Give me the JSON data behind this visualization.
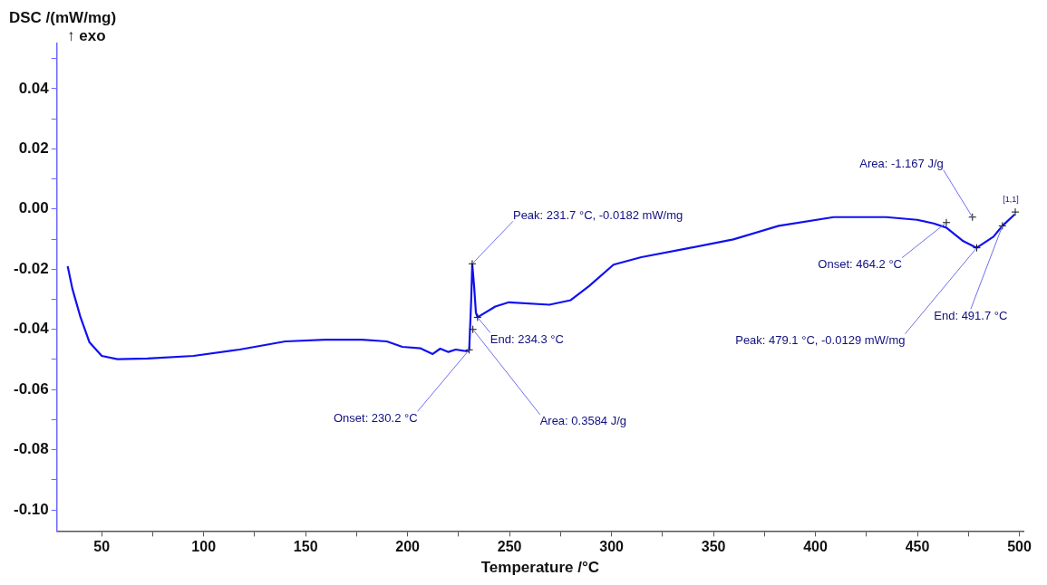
{
  "chart_data": {
    "type": "line",
    "ylabel": "DSC /(mW/mg)",
    "xlabel": "Temperature /°C",
    "annotations": [
      "↑ exo",
      {
        "text": "Onset: 230.2 °C",
        "x": 230.2,
        "y": -0.0468
      },
      {
        "text": "Peak: 231.7 °C, -0.0182 mW/mg",
        "x": 231.7,
        "y": -0.0182
      },
      {
        "text": "End: 234.3 °C",
        "x": 234.3,
        "y": -0.036
      },
      {
        "text": "Area: 0.3584 J/g",
        "x": 232,
        "y": -0.04
      },
      {
        "text": "Area: -1.167 J/g",
        "x": 477,
        "y": -0.0027
      },
      {
        "text": "Onset: 464.2 °C",
        "x": 464.2,
        "y": -0.0045
      },
      {
        "text": "Peak: 479.1 °C, -0.0129 mW/mg",
        "x": 479.1,
        "y": -0.0129
      },
      {
        "text": "End: 491.7 °C",
        "x": 491.7,
        "y": -0.0056
      },
      {
        "text": "[1,1]",
        "x": 498,
        "y": -0.001
      }
    ],
    "series": [
      {
        "color": "#1010f0",
        "x": [
          33.3,
          35.6,
          39.6,
          44,
          50,
          57.7,
          72.5,
          95,
          117.6,
          140,
          159.6,
          177.6,
          189.8,
          197.4,
          206.4,
          212.3,
          216,
          220,
          223.6,
          229.5,
          230.2,
          231.2,
          231.7,
          232.6,
          233.5,
          234.3,
          243,
          249.7,
          269.5,
          280,
          289,
          301,
          314.6,
          337,
          359.7,
          382,
          409,
          434.6,
          449.9,
          458,
          464.2,
          472.5,
          479.1,
          487.3,
          491.7,
          497.7
        ],
        "values": [
          -0.019,
          -0.0265,
          -0.036,
          -0.0443,
          -0.0488,
          -0.0499,
          -0.0497,
          -0.0488,
          -0.0467,
          -0.044,
          -0.0434,
          -0.0434,
          -0.044,
          -0.0458,
          -0.0463,
          -0.0482,
          -0.0464,
          -0.0475,
          -0.0467,
          -0.0473,
          -0.0468,
          -0.03,
          -0.0182,
          -0.0256,
          -0.0345,
          -0.036,
          -0.0324,
          -0.031,
          -0.0318,
          -0.0303,
          -0.0256,
          -0.0185,
          -0.016,
          -0.0131,
          -0.0101,
          -0.0056,
          -0.0027,
          -0.0027,
          -0.0036,
          -0.0048,
          -0.0062,
          -0.0107,
          -0.0129,
          -0.0092,
          -0.0056,
          -0.0018
        ]
      }
    ],
    "xlim": [
      28,
      502
    ],
    "xticks": [
      50,
      {
        "value": 75,
        "label": null
      },
      100,
      {
        "value": 125,
        "label": null
      },
      150,
      {
        "value": 175,
        "label": null
      },
      200,
      {
        "value": 225,
        "label": null
      },
      250,
      {
        "value": 275,
        "label": null
      },
      300,
      {
        "value": 325,
        "label": null
      },
      350,
      {
        "value": 375,
        "label": null
      },
      400,
      {
        "value": 425,
        "label": null
      },
      450,
      {
        "value": 475,
        "label": null
      },
      500
    ],
    "ylim": [
      -0.107,
      0.055
    ],
    "yticks": [
      {
        "value": -0.1,
        "label": "-0.10"
      },
      {
        "value": -0.09,
        "label": null
      },
      -0.08,
      {
        "value": -0.07,
        "label": null
      },
      -0.06,
      {
        "value": -0.05,
        "label": null
      },
      -0.04,
      {
        "value": -0.03,
        "label": null
      },
      -0.02,
      {
        "value": -0.01,
        "label": null
      },
      {
        "value": 0,
        "label": "0.00"
      },
      {
        "value": 0.01,
        "label": null
      },
      0.02,
      {
        "value": 0.03,
        "label": null
      },
      0.04,
      {
        "value": 0.05,
        "label": null
      }
    ],
    "grid": false,
    "legend": false,
    "marker": "none",
    "line_style": "solid"
  }
}
